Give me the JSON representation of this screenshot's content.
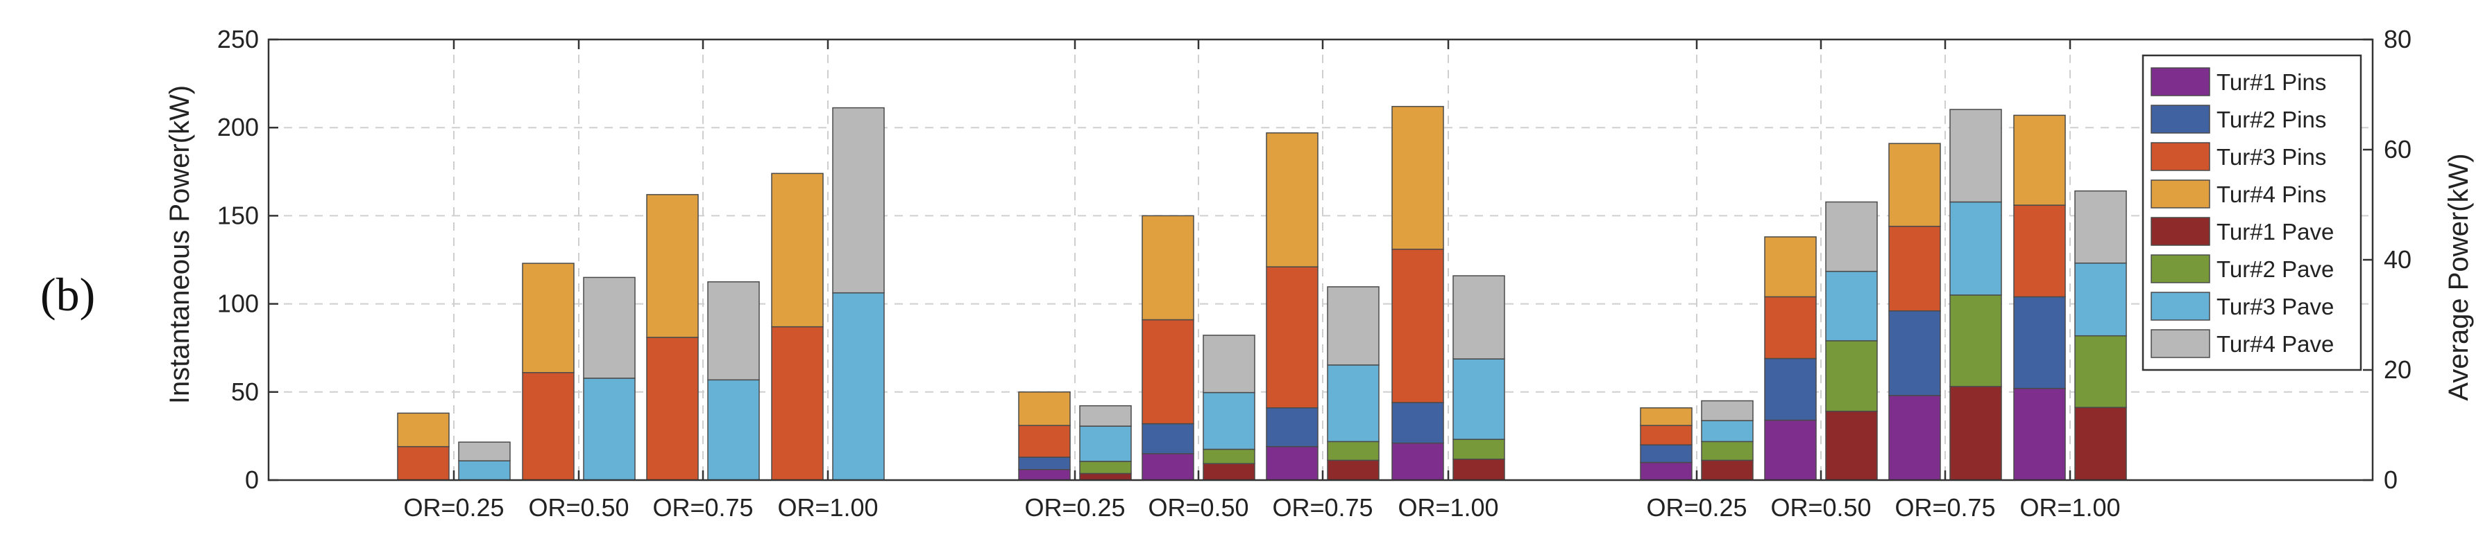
{
  "panel_label": "(b)",
  "chart_data": {
    "type": "bar",
    "stacked": true,
    "groups": [
      "OR=0.25",
      "OR=0.50",
      "OR=0.75",
      "OR=1.00",
      "OR=0.25",
      "OR=0.50",
      "OR=0.75",
      "OR=1.00",
      "OR=0.25",
      "OR=0.50",
      "OR=0.75",
      "OR=1.00"
    ],
    "ylabel_left": "Instantaneous Power(kW)",
    "ylabel_right": "Average Power(kW)",
    "ylim_left": [
      0,
      250
    ],
    "ylim_right": [
      0,
      80
    ],
    "yticks_left": [
      0,
      50,
      100,
      150,
      200,
      250
    ],
    "yticks_right": [
      0,
      20,
      40,
      60,
      80
    ],
    "grid": true,
    "legend_position": "top-right",
    "series": [
      {
        "name": "Tur#1 Pins",
        "color": "#7e2f8e",
        "bar": "instantaneous",
        "values": [
          0,
          0,
          0,
          0,
          6,
          15,
          19,
          21,
          10,
          34,
          48,
          52
        ]
      },
      {
        "name": "Tur#2 Pins",
        "color": "#4062a0",
        "bar": "instantaneous",
        "values": [
          0,
          0,
          0,
          0,
          7,
          17,
          22,
          23,
          10,
          35,
          48,
          52
        ]
      },
      {
        "name": "Tur#3 Pins",
        "color": "#d0552c",
        "bar": "instantaneous",
        "values": [
          19,
          61,
          81,
          87,
          18,
          59,
          80,
          87,
          11,
          35,
          48,
          52
        ]
      },
      {
        "name": "Tur#4 Pins",
        "color": "#e0a040",
        "bar": "instantaneous",
        "values": [
          19,
          62,
          81,
          87,
          19,
          59,
          76,
          81,
          10,
          34,
          47,
          51
        ]
      },
      {
        "name": "Tur#1 Pave",
        "color": "#8e2a2a",
        "bar": "average",
        "values": [
          0,
          0,
          0,
          0,
          1.2,
          3.0,
          3.6,
          3.8,
          3.6,
          12.5,
          17.0,
          13.2
        ]
      },
      {
        "name": "Tur#2 Pave",
        "color": "#77993a",
        "bar": "average",
        "values": [
          0,
          0,
          0,
          0,
          2.2,
          2.6,
          3.4,
          3.6,
          3.4,
          12.8,
          16.6,
          13.0
        ]
      },
      {
        "name": "Tur#3 Pave",
        "color": "#66b2d6",
        "bar": "average",
        "values": [
          3.5,
          18.5,
          18.2,
          34.0,
          6.4,
          10.3,
          13.9,
          14.6,
          3.8,
          12.6,
          16.9,
          13.2
        ]
      },
      {
        "name": "Tur#4 Pave",
        "color": "#b8b8b8",
        "bar": "average",
        "values": [
          3.4,
          18.3,
          17.8,
          33.6,
          3.7,
          10.4,
          14.2,
          15.1,
          3.6,
          12.6,
          16.8,
          13.1
        ]
      }
    ]
  }
}
